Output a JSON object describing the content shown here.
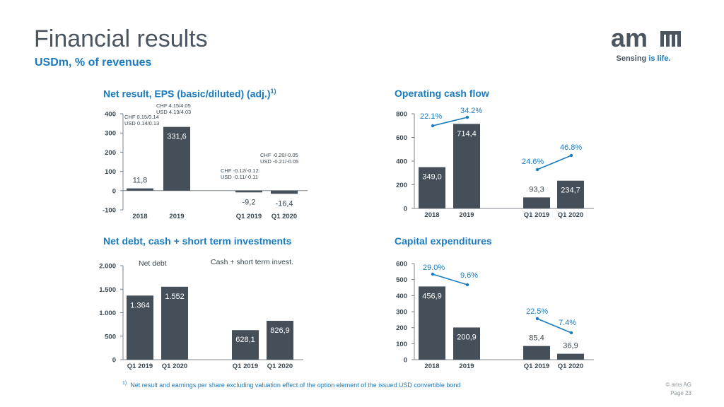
{
  "header": {
    "title": "Financial results",
    "subtitle": "USDm, % of revenues"
  },
  "logo": {
    "brand": "am",
    "tagline_a": "Sensing ",
    "tagline_b": "is life."
  },
  "footer": {
    "footnote_mark": "1)",
    "footnote": "Net result and earnings per share excluding valuation effect of the option element of the issued USD convertible bond",
    "copyright": "© ams AG",
    "page": "Page 23"
  },
  "colors": {
    "bar": "#444f59",
    "accent": "#1a7bbf",
    "text": "#3a4750"
  },
  "chart_data": [
    {
      "type": "bar",
      "title": "Net result, EPS (basic/diluted) (adj.)",
      "title_sup": "1)",
      "categories": [
        "2018",
        "2019",
        "Q1 2019",
        "Q1 2020"
      ],
      "values": [
        11.8,
        331.6,
        -9.2,
        -16.4
      ],
      "value_labels": [
        "11,8",
        "331,6",
        "-9,2",
        "-16,4"
      ],
      "ylim": [
        -100,
        400
      ],
      "yticks": [
        -100,
        0,
        100,
        200,
        300,
        400
      ],
      "ytick_labels": [
        "-100",
        "0",
        "100",
        "200",
        "300",
        "400"
      ],
      "annotations": [
        [
          "CHF 0.15/0.14",
          "USD 0.14/0.13"
        ],
        [
          "CHF 4.15/4.05",
          "USD 4.13/4.03"
        ],
        [
          "CHF -0.12/-0.12",
          "USD -0.11/-0.11"
        ],
        [
          "CHF -0.20/-0.05",
          "USD -0.21/-0.05"
        ]
      ]
    },
    {
      "type": "bar",
      "title": "Operating cash flow",
      "categories": [
        "2018",
        "2019",
        "Q1 2019",
        "Q1 2020"
      ],
      "values": [
        349.0,
        714.4,
        93.3,
        234.7
      ],
      "value_labels": [
        "349,0",
        "714,4",
        "93,3",
        "234,7"
      ],
      "ylim": [
        0,
        800
      ],
      "yticks": [
        0,
        200,
        400,
        600,
        800
      ],
      "ytick_labels": [
        "0",
        "200",
        "400",
        "600",
        "800"
      ],
      "percent_lines": [
        {
          "from": "22.1%",
          "to": "34.2%"
        },
        {
          "from": "24.6%",
          "to": "46.8%"
        }
      ]
    },
    {
      "type": "bar",
      "title": "Net debt, cash + short term investments",
      "categories": [
        "Q1 2019",
        "Q1 2020",
        "Q1 2019",
        "Q1 2020"
      ],
      "values": [
        1364,
        1552,
        628.1,
        826.9
      ],
      "value_labels": [
        "1.364",
        "1.552",
        "628,1",
        "826,9"
      ],
      "ylim": [
        0,
        2000
      ],
      "yticks": [
        0,
        500,
        1000,
        1500,
        2000
      ],
      "ytick_labels": [
        "0",
        "500",
        "1.000",
        "1.500",
        "2.000"
      ],
      "group_labels": [
        "Net debt",
        "Cash + short term invest."
      ]
    },
    {
      "type": "bar",
      "title": "Capital expenditures",
      "categories": [
        "2018",
        "2019",
        "Q1 2019",
        "Q1 2020"
      ],
      "values": [
        456.9,
        200.9,
        85.4,
        36.9
      ],
      "value_labels": [
        "456,9",
        "200,9",
        "85,4",
        "36,9"
      ],
      "ylim": [
        0,
        600
      ],
      "yticks": [
        0,
        100,
        200,
        300,
        400,
        500,
        600
      ],
      "ytick_labels": [
        "0",
        "100",
        "200",
        "300",
        "400",
        "500",
        "600"
      ],
      "percent_lines": [
        {
          "from": "29.0%",
          "to": "9.6%"
        },
        {
          "from": "22.5%",
          "to": "7.4%"
        }
      ]
    }
  ]
}
